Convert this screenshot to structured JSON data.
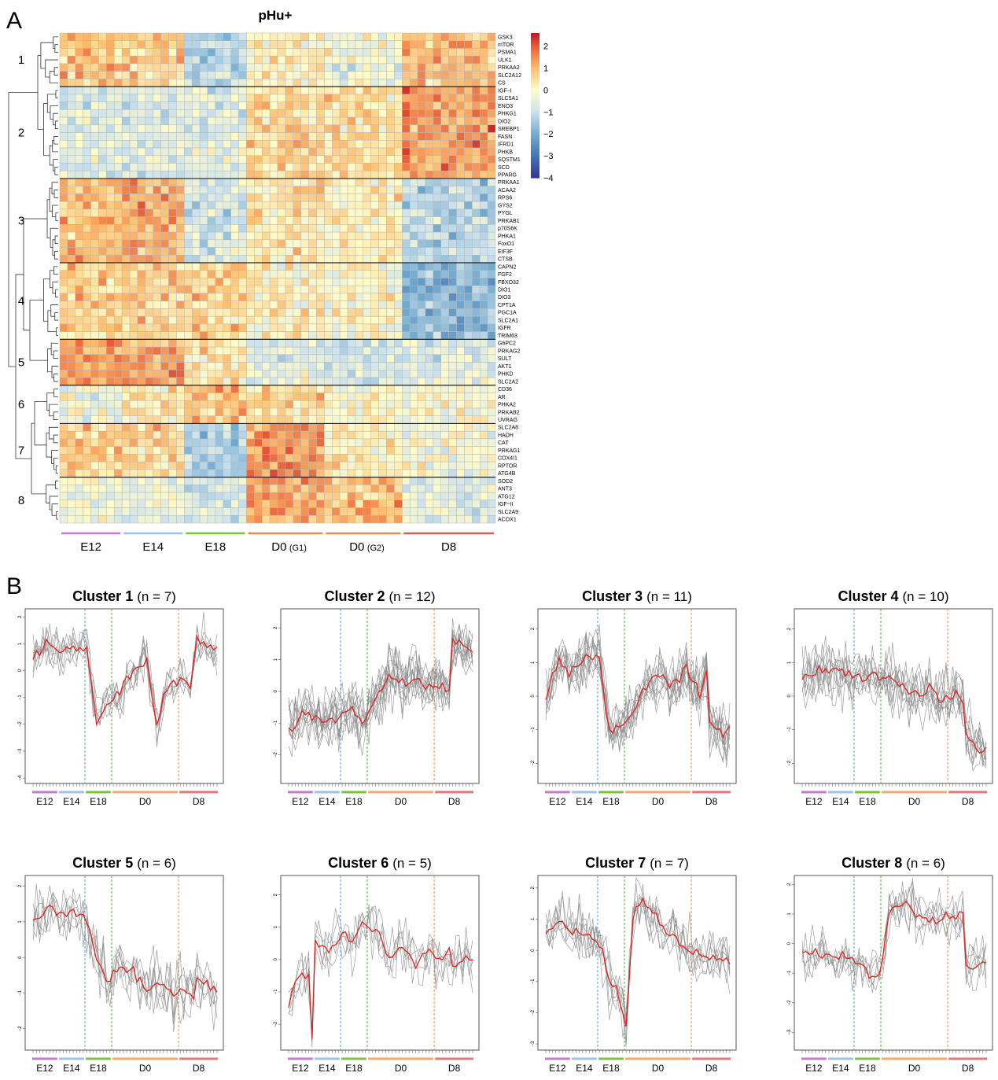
{
  "panel_labels": {
    "a": "A",
    "b": "B"
  },
  "chart_data": [
    {
      "type": "heatmap",
      "title": "pHu+",
      "cluster_labels": [
        "1",
        "2",
        "3",
        "4",
        "5",
        "6",
        "7",
        "8"
      ],
      "cluster_sizes": [
        7,
        12,
        11,
        10,
        6,
        5,
        7,
        6
      ],
      "genes": [
        "GSK3",
        "mTOR",
        "PSMA1",
        "ULK1",
        "PRKAA2",
        "SLC2A12",
        "CS",
        "IGF−I",
        "SLC5A1",
        "ENO3",
        "PHKG1",
        "DIO2",
        "SREBP1",
        "FASN",
        "IFRD1",
        "PHKB",
        "SQSTM1",
        "SCD",
        "PPARG",
        "PRKAA1",
        "ACAA2",
        "RPS6",
        "GYS2",
        "PYGL",
        "PRKAB1",
        "p70S6K",
        "PHKA1",
        "FoxO1",
        "EIF3F",
        "CTSB",
        "CAPN2",
        "FGF2",
        "FBXO32",
        "DIO1",
        "DIO3",
        "CPT1A",
        "PGC1A",
        "SLC2A1",
        "IGFR",
        "TRIM63",
        "G6PC2",
        "PRKAG2",
        "SULT",
        "AKT1",
        "PHKD",
        "SLC2A2",
        "CD36",
        "AR",
        "PHKA2",
        "PRKAB2",
        "UVRAG",
        "SLC2A8",
        "HADH",
        "CAT",
        "PRKAG1",
        "COX4I1",
        "RPTOR",
        "ATG4B",
        "SOD2",
        "ANT3",
        "ATG12",
        "IGF−II",
        "SLC2A9",
        "ACOX1"
      ],
      "groups": [
        {
          "label": "E12",
          "sub": "",
          "n": 8,
          "color": "#c77bd0"
        },
        {
          "label": "E14",
          "sub": "",
          "n": 8,
          "color": "#9dc3e6"
        },
        {
          "label": "E18",
          "sub": "",
          "n": 8,
          "color": "#7cc242"
        },
        {
          "label": "D0",
          "sub": "(G1)",
          "n": 10,
          "color": "#f08a4b"
        },
        {
          "label": "D0",
          "sub": "(G2)",
          "n": 10,
          "color": "#f08a4b"
        },
        {
          "label": "D8",
          "sub": "",
          "n": 12,
          "color": "#e05a56"
        }
      ],
      "colorbar_ticks": [
        "2",
        "1",
        "0",
        "−1",
        "−2",
        "−3",
        "−4"
      ],
      "value_range": [
        -4,
        2.6
      ],
      "cluster_group_means": [
        [
          0.8,
          0.8,
          -1.2,
          0.1,
          -0.3,
          1.0
        ],
        [
          -0.7,
          -0.7,
          -0.6,
          0.6,
          0.4,
          1.4
        ],
        [
          1.0,
          1.1,
          -0.8,
          0.4,
          0.2,
          -1.2
        ],
        [
          0.7,
          0.7,
          0.6,
          0.2,
          0.0,
          -1.8
        ],
        [
          1.3,
          1.2,
          0.3,
          -0.6,
          -0.8,
          -0.6
        ],
        [
          -0.4,
          0.3,
          1.0,
          0.6,
          0.0,
          -0.1
        ],
        [
          0.7,
          0.6,
          -1.3,
          1.4,
          0.2,
          -0.2
        ],
        [
          -0.3,
          -0.4,
          -0.8,
          1.3,
          0.9,
          -0.5
        ]
      ]
    },
    {
      "type": "line",
      "panels": [
        {
          "name": "Cluster 1",
          "n": "(n = 7)",
          "yticks": [
            "2",
            "1",
            "0",
            "−1",
            "−2",
            "−3",
            "−4"
          ],
          "ylim": [
            -4.2,
            2.3
          ],
          "profile": [
            [
              0,
              0.4
            ],
            [
              4,
              1.0
            ],
            [
              8,
              0.7
            ],
            [
              12,
              0.9
            ],
            [
              16,
              0.8
            ],
            [
              19,
              -1.8
            ],
            [
              22,
              -1.3
            ],
            [
              26,
              -0.8
            ],
            [
              30,
              0.1
            ],
            [
              34,
              0.4
            ],
            [
              37,
              -2.2
            ],
            [
              40,
              -0.5
            ],
            [
              44,
              -0.3
            ],
            [
              47,
              -0.7
            ],
            [
              49,
              1.3
            ],
            [
              53,
              0.8
            ],
            [
              57,
              1.1
            ],
            [
              61,
              0.6
            ],
            [
              63,
              0.3
            ]
          ]
        },
        {
          "name": "Cluster 2",
          "n": "(n = 12)",
          "yticks": [
            "2",
            "1",
            "0",
            "−1",
            "−2"
          ],
          "ylim": [
            -2.9,
            2.6
          ],
          "profile": [
            [
              0,
              -1.2
            ],
            [
              4,
              -0.7
            ],
            [
              8,
              -0.9
            ],
            [
              12,
              -0.8
            ],
            [
              16,
              -0.8
            ],
            [
              19,
              -0.6
            ],
            [
              22,
              -0.9
            ],
            [
              26,
              -0.2
            ],
            [
              30,
              0.6
            ],
            [
              34,
              0.3
            ],
            [
              38,
              0.4
            ],
            [
              42,
              0.1
            ],
            [
              46,
              0.2
            ],
            [
              48,
              0.0
            ],
            [
              49,
              1.5
            ],
            [
              53,
              1.3
            ],
            [
              57,
              1.2
            ],
            [
              61,
              1.4
            ],
            [
              63,
              1.3
            ]
          ]
        },
        {
          "name": "Cluster 3",
          "n": "(n = 11)",
          "yticks": [
            "2",
            "1",
            "0",
            "−1",
            "−2"
          ],
          "ylim": [
            -2.6,
            2.6
          ],
          "profile": [
            [
              0,
              -0.1
            ],
            [
              4,
              1.1
            ],
            [
              8,
              0.7
            ],
            [
              12,
              1.2
            ],
            [
              16,
              1.2
            ],
            [
              19,
              -1.0
            ],
            [
              22,
              -1.0
            ],
            [
              26,
              -0.5
            ],
            [
              30,
              0.4
            ],
            [
              34,
              0.6
            ],
            [
              38,
              0.3
            ],
            [
              42,
              0.8
            ],
            [
              46,
              0.1
            ],
            [
              48,
              0.8
            ],
            [
              49,
              -0.8
            ],
            [
              53,
              -1.2
            ],
            [
              57,
              -0.6
            ],
            [
              61,
              -1.1
            ],
            [
              63,
              -1.2
            ]
          ]
        },
        {
          "name": "Cluster 4",
          "n": "(n = 10)",
          "yticks": [
            "2",
            "1",
            "0",
            "−1",
            "−2"
          ],
          "ylim": [
            -2.6,
            2.6
          ],
          "profile": [
            [
              0,
              0.5
            ],
            [
              4,
              0.8
            ],
            [
              8,
              0.7
            ],
            [
              12,
              0.7
            ],
            [
              16,
              0.6
            ],
            [
              19,
              0.6
            ],
            [
              22,
              0.6
            ],
            [
              26,
              0.5
            ],
            [
              30,
              0.2
            ],
            [
              34,
              0.0
            ],
            [
              38,
              0.2
            ],
            [
              42,
              -0.2
            ],
            [
              46,
              0.1
            ],
            [
              48,
              0.0
            ],
            [
              49,
              -1.2
            ],
            [
              53,
              -1.6
            ],
            [
              57,
              -1.9
            ],
            [
              61,
              -1.6
            ],
            [
              63,
              -1.7
            ]
          ]
        },
        {
          "name": "Cluster 5",
          "n": "(n = 6)",
          "yticks": [
            "2",
            "1",
            "0",
            "−1",
            "−2"
          ],
          "ylim": [
            -2.6,
            2.3
          ],
          "profile": [
            [
              0,
              1.0
            ],
            [
              4,
              1.4
            ],
            [
              8,
              1.2
            ],
            [
              12,
              1.3
            ],
            [
              16,
              1.0
            ],
            [
              19,
              0.0
            ],
            [
              22,
              -0.6
            ],
            [
              26,
              -0.2
            ],
            [
              30,
              -0.5
            ],
            [
              34,
              -0.9
            ],
            [
              38,
              -0.8
            ],
            [
              42,
              -1.0
            ],
            [
              46,
              -1.0
            ],
            [
              48,
              -1.2
            ],
            [
              49,
              -0.6
            ],
            [
              53,
              -0.8
            ],
            [
              57,
              -1.0
            ],
            [
              61,
              -0.7
            ],
            [
              63,
              -0.4
            ]
          ]
        },
        {
          "name": "Cluster 6",
          "n": "(n = 5)",
          "yticks": [
            "2",
            "1",
            "0",
            "−1",
            "−2"
          ],
          "ylim": [
            -2.8,
            2.6
          ],
          "profile": [
            [
              0,
              -1.4
            ],
            [
              3,
              -0.5
            ],
            [
              6,
              -0.6
            ],
            [
              7,
              -2.5
            ],
            [
              8,
              0.6
            ],
            [
              12,
              0.2
            ],
            [
              16,
              0.8
            ],
            [
              19,
              0.5
            ],
            [
              22,
              1.1
            ],
            [
              26,
              1.0
            ],
            [
              30,
              0.1
            ],
            [
              34,
              0.5
            ],
            [
              38,
              -0.2
            ],
            [
              42,
              0.3
            ],
            [
              46,
              0.0
            ],
            [
              48,
              0.2
            ],
            [
              49,
              -0.2
            ],
            [
              53,
              0.2
            ],
            [
              57,
              -0.4
            ],
            [
              61,
              0.4
            ],
            [
              63,
              -0.7
            ]
          ]
        },
        {
          "name": "Cluster 7",
          "n": "(n = 7)",
          "yticks": [
            "2",
            "1",
            "0",
            "−1",
            "−2",
            "−3"
          ],
          "ylim": [
            -3.2,
            2.4
          ],
          "profile": [
            [
              0,
              0.5
            ],
            [
              4,
              1.0
            ],
            [
              8,
              0.6
            ],
            [
              12,
              0.6
            ],
            [
              16,
              0.3
            ],
            [
              19,
              -1.0
            ],
            [
              22,
              -1.5
            ],
            [
              24,
              -2.4
            ],
            [
              26,
              1.0
            ],
            [
              28,
              1.6
            ],
            [
              32,
              1.2
            ],
            [
              36,
              0.5
            ],
            [
              40,
              0.3
            ],
            [
              44,
              0.0
            ],
            [
              48,
              -0.3
            ],
            [
              49,
              -0.3
            ],
            [
              53,
              -0.2
            ],
            [
              57,
              -0.6
            ],
            [
              61,
              -0.1
            ],
            [
              63,
              0.0
            ]
          ]
        },
        {
          "name": "Cluster 8",
          "n": "(n = 6)",
          "yticks": [
            "2",
            "1",
            "0",
            "−1",
            "−2",
            "−3"
          ],
          "ylim": [
            -3.6,
            2.3
          ],
          "profile": [
            [
              0,
              -0.4
            ],
            [
              4,
              -0.3
            ],
            [
              8,
              -0.5
            ],
            [
              12,
              -0.4
            ],
            [
              16,
              -0.6
            ],
            [
              19,
              -0.9
            ],
            [
              22,
              -1.1
            ],
            [
              24,
              -0.7
            ],
            [
              26,
              1.2
            ],
            [
              30,
              1.3
            ],
            [
              34,
              1.0
            ],
            [
              38,
              0.8
            ],
            [
              42,
              0.9
            ],
            [
              46,
              1.0
            ],
            [
              48,
              1.1
            ],
            [
              49,
              -0.9
            ],
            [
              53,
              -0.6
            ],
            [
              57,
              -0.8
            ],
            [
              61,
              -0.5
            ],
            [
              63,
              -1.0
            ]
          ]
        }
      ],
      "x_groups": [
        {
          "label": "E12",
          "n": 8,
          "color": "#c77bd0"
        },
        {
          "label": "E14",
          "n": 8,
          "color": "#9dc3e6"
        },
        {
          "label": "E18",
          "n": 8,
          "color": "#7cc242"
        },
        {
          "label": "D0",
          "n": 20,
          "color": "#f6a96c"
        },
        {
          "label": "D8",
          "n": 12,
          "color": "#e07a7a"
        }
      ],
      "vlines": [
        {
          "after_group": 1,
          "color": "#5b9bd5"
        },
        {
          "after_group": 2,
          "color": "#4fb33a"
        },
        {
          "after_group": 3,
          "color": "#f08a4b"
        }
      ],
      "mean_color": "#e0201d",
      "gene_color": "#8c8c8c"
    }
  ]
}
